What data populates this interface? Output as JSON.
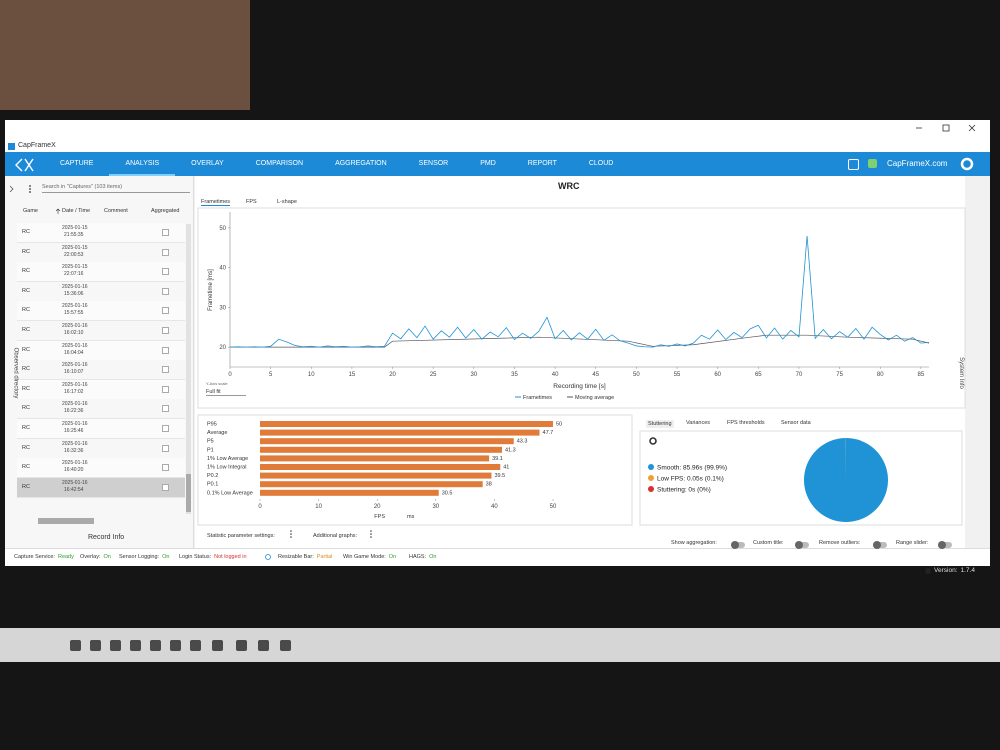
{
  "window": {
    "title": "CapFrameX"
  },
  "nav": {
    "tabs": [
      "CAPTURE",
      "ANALYSIS",
      "OVERLAY",
      "COMPARISON",
      "AGGREGATION",
      "SENSOR",
      "PMD",
      "REPORT",
      "CLOUD"
    ],
    "link": "CapFrameX.com"
  },
  "sidebar": {
    "search": "Search in \"Captures\" (103 items)",
    "columns": [
      "Game",
      "Date / Time",
      "Comment",
      "Aggregated"
    ],
    "rows": [
      {
        "game": "RC",
        "date": "2025-01-15",
        "time": "21:55:35"
      },
      {
        "game": "RC",
        "date": "2025-01-15",
        "time": "22:00:53"
      },
      {
        "game": "RC",
        "date": "2025-01-15",
        "time": "22:07:16"
      },
      {
        "game": "RC",
        "date": "2025-01-16",
        "time": "15:36:06"
      },
      {
        "game": "RC",
        "date": "2025-01-16",
        "time": "15:57:55"
      },
      {
        "game": "RC",
        "date": "2025-01-16",
        "time": "16:02:10"
      },
      {
        "game": "RC",
        "date": "2025-01-16",
        "time": "16:04:04"
      },
      {
        "game": "RC",
        "date": "2025-01-16",
        "time": "16:10:07"
      },
      {
        "game": "RC",
        "date": "2025-01-16",
        "time": "16:17:02"
      },
      {
        "game": "RC",
        "date": "2025-01-16",
        "time": "16:22:36"
      },
      {
        "game": "RC",
        "date": "2025-01-16",
        "time": "16:25:46"
      },
      {
        "game": "RC",
        "date": "2025-01-16",
        "time": "16:32:36"
      },
      {
        "game": "RC",
        "date": "2025-01-16",
        "time": "16:40:20"
      },
      {
        "game": "RC",
        "date": "2025-01-16",
        "time": "16:42:54"
      }
    ],
    "footer": "Record Info",
    "side_label": "Observed directory"
  },
  "right_label": "System Info",
  "analysis": {
    "title": "WRC",
    "tabs": [
      "Frametimes",
      "FPS",
      "L-shape"
    ],
    "y_axis_scale_label": "Y-Axis scale",
    "y_axis_scale": "Full fit"
  },
  "chart_data": [
    {
      "type": "line",
      "xlabel": "Recording time [s]",
      "ylabel": "Frametime [ms]",
      "xlim": [
        0,
        86
      ],
      "xticks": [
        0,
        5,
        10,
        15,
        20,
        25,
        30,
        35,
        40,
        45,
        50,
        55,
        60,
        65,
        70,
        75,
        80,
        85
      ],
      "ylim": [
        15,
        54
      ],
      "yticks": [
        20,
        30,
        40,
        50
      ],
      "grid": false,
      "series": [
        {
          "name": "Frametimes",
          "color": "#1f93d6",
          "x": [
            0,
            1,
            2,
            3,
            4,
            5,
            6,
            7,
            8,
            9,
            10,
            11,
            12,
            13,
            14,
            15,
            16,
            17,
            18,
            19,
            20,
            21,
            22,
            23,
            24,
            25,
            26,
            27,
            28,
            29,
            30,
            31,
            32,
            33,
            34,
            35,
            36,
            37,
            38,
            39,
            40,
            41,
            42,
            43,
            44,
            45,
            46,
            47,
            48,
            49,
            50,
            51,
            52,
            53,
            54,
            55,
            56,
            57,
            58,
            59,
            60,
            61,
            62,
            63,
            64,
            65,
            66,
            67,
            68,
            69,
            70,
            71,
            72,
            73,
            74,
            75,
            76,
            77,
            78,
            79,
            80,
            81,
            82,
            83,
            84,
            85,
            86
          ],
          "values": [
            20.0,
            20.1,
            20.0,
            20.1,
            20.0,
            20.2,
            22.0,
            21.3,
            20.4,
            20.1,
            20.2,
            20.0,
            20.3,
            20.1,
            20.2,
            20.0,
            20.1,
            20.3,
            20.1,
            20.2,
            23.5,
            22.1,
            24.6,
            22.4,
            25.3,
            22.0,
            24.1,
            22.5,
            25.0,
            22.3,
            24.4,
            22.0,
            23.8,
            22.6,
            24.9,
            21.9,
            23.5,
            22.2,
            24.0,
            27.5,
            22.1,
            24.2,
            21.8,
            23.6,
            22.0,
            24.5,
            21.7,
            23.1,
            21.6,
            21.0,
            20.3,
            20.1,
            20.0,
            20.6,
            20.2,
            20.8,
            20.3,
            21.0,
            23.0,
            22.0,
            24.3,
            21.9,
            23.7,
            22.4,
            24.6,
            25.5,
            22.3,
            24.8,
            22.0,
            24.2,
            22.6,
            48.0,
            22.2,
            24.4,
            22.1,
            23.9,
            22.5,
            24.7,
            22.0,
            25.0,
            23.2,
            21.8,
            23.0,
            21.5,
            22.4,
            21.0,
            21.2
          ]
        },
        {
          "name": "Moving average",
          "color": "#555555",
          "x": [
            0,
            19,
            20,
            38,
            49,
            52,
            57,
            64,
            66,
            71,
            76,
            84,
            86
          ],
          "values": [
            20,
            20,
            21.5,
            22.5,
            21.5,
            20.2,
            20.6,
            22.5,
            23,
            23,
            22.5,
            22,
            21
          ]
        }
      ]
    },
    {
      "type": "bar",
      "orientation": "horizontal",
      "categories": [
        "P95",
        "Average",
        "P5",
        "P1",
        "1% Low Average",
        "1% Low Integral",
        "P0.2",
        "P0.1",
        "0.1% Low Average"
      ],
      "values": [
        50,
        47.7,
        43.3,
        41.3,
        39.1,
        41,
        39.5,
        38,
        30.5
      ],
      "color": "#e07b39",
      "xlim": [
        0,
        50
      ],
      "xticks": [
        0,
        10,
        20,
        30,
        40,
        50
      ],
      "toggle_labels": [
        "FPS",
        "ms"
      ]
    },
    {
      "type": "pie",
      "tabs": [
        "Stuttering",
        "Variances",
        "FPS thresholds",
        "Sensor data"
      ],
      "options": "Options",
      "values": [
        85.96,
        0.05,
        0
      ],
      "value_labels": [
        "Smooth: 85.96s (99.9%)",
        "Low FPS: 0.05s (0.1%)",
        "Stuttering: 0s (0%)"
      ],
      "colors": [
        "#1f93d6",
        "#f0a030",
        "#d93030"
      ]
    }
  ],
  "settings": {
    "statistic": "Statistic parameter settings:",
    "additional": "Additional graphs:",
    "toggles": [
      "Show aggregation:",
      "Custom title:",
      "Remove outliers:",
      "Range slider:"
    ]
  },
  "status": {
    "items": [
      {
        "label": "Capture Service:",
        "value": "Ready",
        "color": "#2e9e2e"
      },
      {
        "label": "Overlay:",
        "value": "On",
        "color": "#2e9e2e"
      },
      {
        "label": "Sensor Logging:",
        "value": "On",
        "color": "#2e9e2e"
      },
      {
        "label": "Login Status:",
        "value": "Not logged in",
        "color": "#d93030"
      },
      {
        "label": "Resizable Bar:",
        "value": "Partial",
        "color": "#e08a20"
      },
      {
        "label": "Win Game Mode:",
        "value": "On",
        "color": "#2e9e2e"
      },
      {
        "label": "HAGS:",
        "value": "On",
        "color": "#2e9e2e"
      }
    ],
    "version_label": "Version:",
    "version": "1.7.4"
  }
}
